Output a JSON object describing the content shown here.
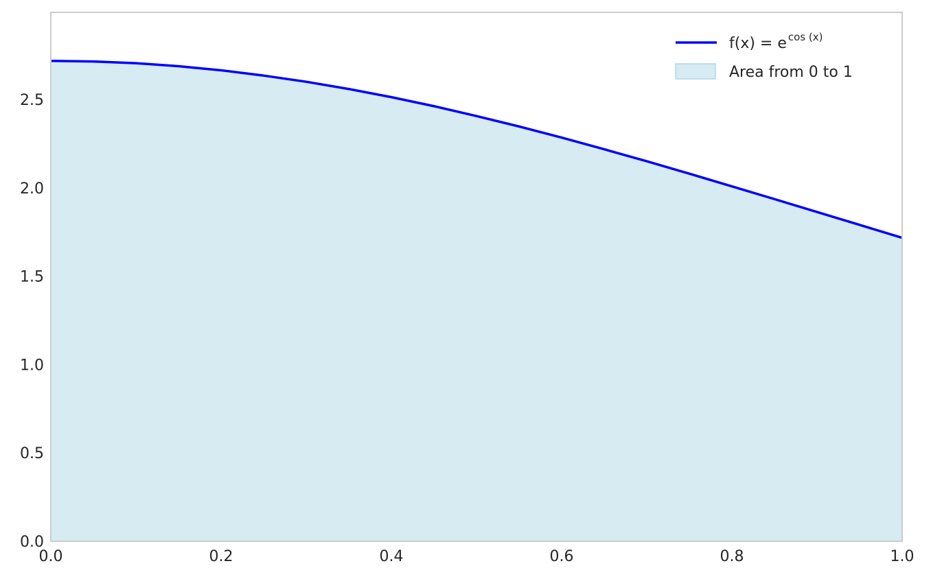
{
  "chart_data": {
    "type": "area",
    "title": "",
    "xlabel": "",
    "ylabel": "",
    "xlim": [
      0.0,
      1.0
    ],
    "ylim": [
      0.0,
      2.9928
    ],
    "grid": false,
    "legend_position": "top-right",
    "x_ticks": [
      "0.0",
      "0.2",
      "0.4",
      "0.6",
      "0.8",
      "1.0"
    ],
    "y_ticks": [
      "0.0",
      "0.5",
      "1.0",
      "1.5",
      "2.0",
      "2.5"
    ],
    "x_tick_values": [
      0.0,
      0.2,
      0.4,
      0.6,
      0.8,
      1.0
    ],
    "y_tick_values": [
      0.0,
      0.5,
      1.0,
      1.5,
      2.0,
      2.5
    ],
    "series": [
      {
        "name": "f(x) = e^{cos(x)}",
        "name_parts": {
          "prefix": "f(x) = e",
          "superscript": "cos (x)"
        },
        "kind": "line",
        "color": "#0000ff",
        "x": [
          0.0,
          0.05,
          0.1,
          0.15,
          0.2,
          0.25,
          0.3,
          0.35,
          0.4,
          0.45,
          0.5,
          0.55,
          0.6,
          0.65,
          0.7,
          0.75,
          0.8,
          0.85,
          0.9,
          0.95,
          1.0
        ],
        "y": [
          2.718,
          2.715,
          2.705,
          2.688,
          2.665,
          2.635,
          2.6,
          2.559,
          2.513,
          2.462,
          2.406,
          2.347,
          2.284,
          2.218,
          2.15,
          2.08,
          2.008,
          1.936,
          1.863,
          1.79,
          1.717
        ]
      },
      {
        "name": "Area from 0 to 1",
        "kind": "fill",
        "color": "#add8e6",
        "x_range": [
          0.0,
          1.0
        ]
      }
    ]
  }
}
